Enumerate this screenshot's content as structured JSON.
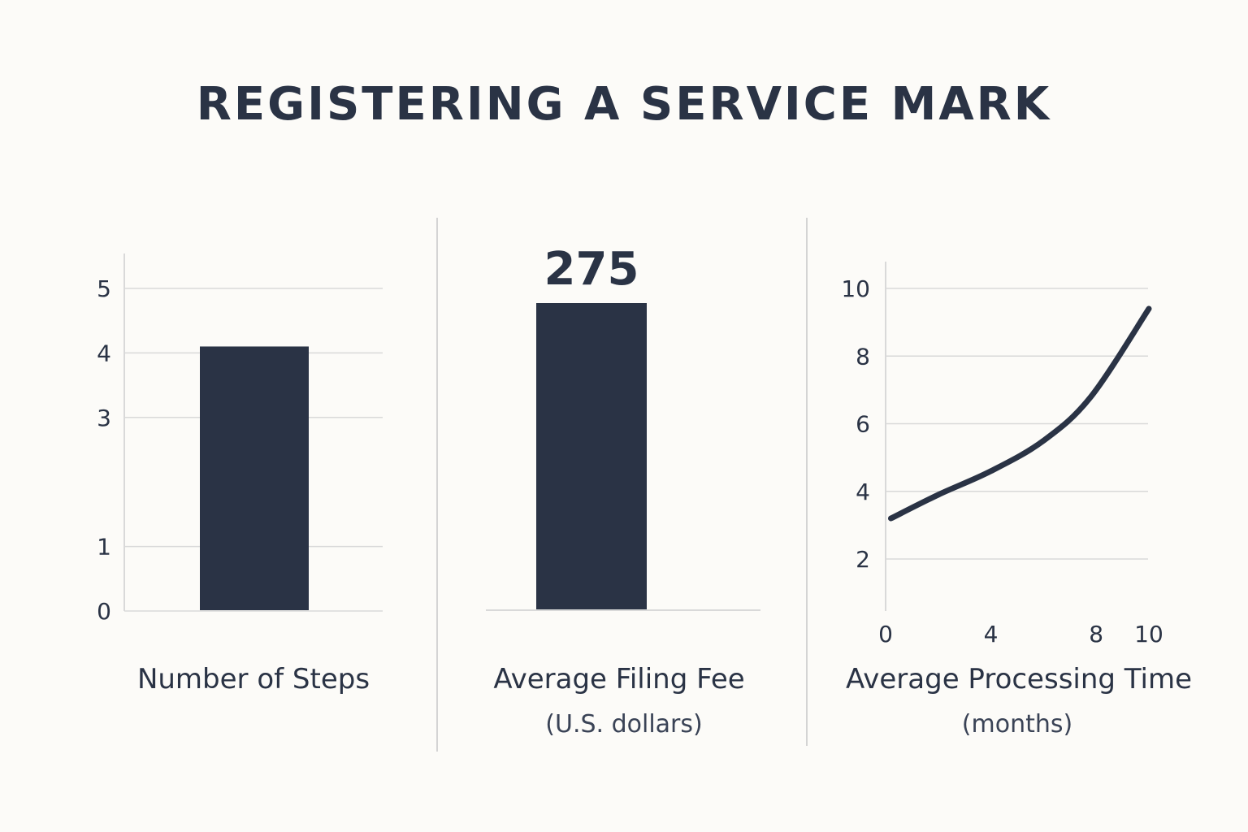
{
  "title": "REGISTERING A SERVICE MARK",
  "colors": {
    "mark": "#2a3345",
    "grid": "#d9d9d9",
    "divider": "#d4d4d4",
    "background": "#fcfbf8"
  },
  "chart_data": [
    {
      "type": "bar",
      "caption": "Number of Steps",
      "categories": [
        ""
      ],
      "values": [
        4.1
      ],
      "ylim": [
        0,
        5
      ],
      "yticks": [
        0,
        1,
        3,
        4,
        5
      ],
      "grid": true
    },
    {
      "type": "bar",
      "caption": "Average Filing Fee",
      "subcaption": "(U.S. dollars)",
      "categories": [
        ""
      ],
      "values": [
        275
      ],
      "data_labels": [
        "275"
      ],
      "grid": false
    },
    {
      "type": "line",
      "caption": "Average Processing Time",
      "subcaption": "(months)",
      "x": [
        0.2,
        2,
        4,
        6,
        7.8,
        10
      ],
      "y": [
        3.2,
        3.9,
        4.6,
        5.5,
        6.8,
        9.4
      ],
      "xticks": [
        0,
        4,
        8,
        10
      ],
      "yticks": [
        2,
        4,
        6,
        8,
        10
      ],
      "xlim": [
        0,
        10
      ],
      "ylim": [
        1,
        10
      ],
      "grid": true
    }
  ]
}
